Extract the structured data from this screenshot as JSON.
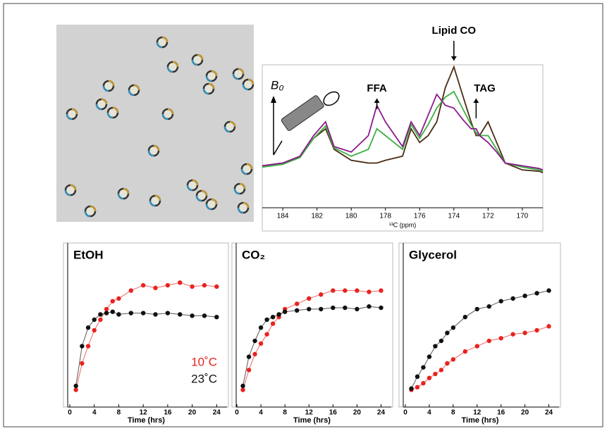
{
  "chart_data": [
    {
      "type": "line",
      "x_label": "¹³C (ppm)",
      "annotations": [
        "Lipid CO",
        "FFA",
        "TAG",
        "B₀"
      ],
      "xlim": [
        185.2,
        168.8
      ],
      "xticks": [
        184,
        182,
        180,
        178,
        176,
        174,
        172,
        170
      ],
      "ylim": [
        0,
        1
      ],
      "x": [
        185.2,
        184,
        183,
        182.2,
        181.5,
        181,
        180,
        179,
        178.5,
        178,
        177,
        176.5,
        176,
        175.5,
        175,
        174.5,
        174,
        173.5,
        173,
        172.7,
        172.5,
        172,
        171.5,
        171,
        170,
        169,
        168.8
      ],
      "series": [
        {
          "color": "#4a2a10",
          "values": [
            0.28,
            0.3,
            0.34,
            0.48,
            0.55,
            0.4,
            0.32,
            0.3,
            0.3,
            0.32,
            0.35,
            0.55,
            0.45,
            0.5,
            0.6,
            0.85,
            1.0,
            0.8,
            0.6,
            0.5,
            0.5,
            0.6,
            0.45,
            0.3,
            0.25,
            0.24,
            0.23
          ]
        },
        {
          "color": "#3cb043",
          "values": [
            0.27,
            0.29,
            0.34,
            0.48,
            0.57,
            0.41,
            0.35,
            0.4,
            0.55,
            0.5,
            0.4,
            0.58,
            0.48,
            0.58,
            0.7,
            0.78,
            0.82,
            0.7,
            0.58,
            0.52,
            0.5,
            0.5,
            0.4,
            0.3,
            0.27,
            0.25,
            0.24
          ]
        },
        {
          "color": "#8b1a8b",
          "values": [
            0.28,
            0.3,
            0.35,
            0.5,
            0.6,
            0.42,
            0.38,
            0.5,
            0.72,
            0.6,
            0.42,
            0.6,
            0.5,
            0.65,
            0.8,
            0.72,
            0.7,
            0.62,
            0.55,
            0.55,
            0.5,
            0.45,
            0.38,
            0.3,
            0.28,
            0.26,
            0.25
          ]
        }
      ]
    },
    {
      "type": "scatter",
      "title": "EtOH",
      "x_label": "Time (hrs)",
      "xlim": [
        0,
        25
      ],
      "xticks": [
        0,
        4,
        8,
        12,
        16,
        20,
        24
      ],
      "ylim": [
        0,
        1
      ],
      "x": [
        1,
        2,
        3,
        4,
        5,
        6,
        7,
        8,
        10,
        12,
        14,
        16,
        18,
        20,
        22,
        24
      ],
      "series": [
        {
          "name": "10˚C",
          "color": "#e8231f",
          "values": [
            0.05,
            0.25,
            0.38,
            0.5,
            0.58,
            0.66,
            0.72,
            0.74,
            0.8,
            0.84,
            0.82,
            0.84,
            0.86,
            0.83,
            0.84,
            0.83
          ]
        },
        {
          "name": "23˚C",
          "color": "#111111",
          "values": [
            0.08,
            0.38,
            0.52,
            0.58,
            0.62,
            0.63,
            0.64,
            0.62,
            0.63,
            0.63,
            0.62,
            0.63,
            0.62,
            0.61,
            0.61,
            0.6
          ]
        }
      ]
    },
    {
      "type": "scatter",
      "title": "CO₂",
      "x_label": "Time (hrs)",
      "xlim": [
        0,
        25
      ],
      "xticks": [
        0,
        4,
        8,
        12,
        16,
        20,
        24
      ],
      "ylim": [
        0,
        1
      ],
      "x": [
        1,
        2,
        3,
        4,
        5,
        6,
        7,
        8,
        10,
        12,
        14,
        16,
        18,
        20,
        22,
        24
      ],
      "series": [
        {
          "color": "#e8231f",
          "values": [
            0.05,
            0.2,
            0.32,
            0.4,
            0.47,
            0.55,
            0.6,
            0.66,
            0.7,
            0.74,
            0.77,
            0.8,
            0.8,
            0.8,
            0.79,
            0.8
          ]
        },
        {
          "color": "#111111",
          "values": [
            0.08,
            0.3,
            0.42,
            0.52,
            0.58,
            0.6,
            0.62,
            0.64,
            0.65,
            0.66,
            0.66,
            0.67,
            0.67,
            0.66,
            0.68,
            0.67
          ]
        }
      ]
    },
    {
      "type": "scatter",
      "title": "Glycerol",
      "x_label": "Time (hrs)",
      "xlim": [
        0,
        25
      ],
      "xticks": [
        0,
        4,
        8,
        12,
        16,
        20,
        24
      ],
      "ylim": [
        0,
        1
      ],
      "x": [
        1,
        2,
        3,
        4,
        5,
        6,
        7,
        8,
        10,
        12,
        14,
        16,
        18,
        20,
        22,
        24
      ],
      "series": [
        {
          "color": "#e8231f",
          "values": [
            0.05,
            0.07,
            0.1,
            0.14,
            0.17,
            0.2,
            0.25,
            0.28,
            0.34,
            0.38,
            0.42,
            0.44,
            0.47,
            0.48,
            0.5,
            0.53
          ]
        },
        {
          "color": "#111111",
          "values": [
            0.06,
            0.15,
            0.22,
            0.3,
            0.38,
            0.42,
            0.48,
            0.52,
            0.6,
            0.66,
            0.68,
            0.72,
            0.74,
            0.76,
            0.78,
            0.8
          ]
        }
      ]
    }
  ]
}
